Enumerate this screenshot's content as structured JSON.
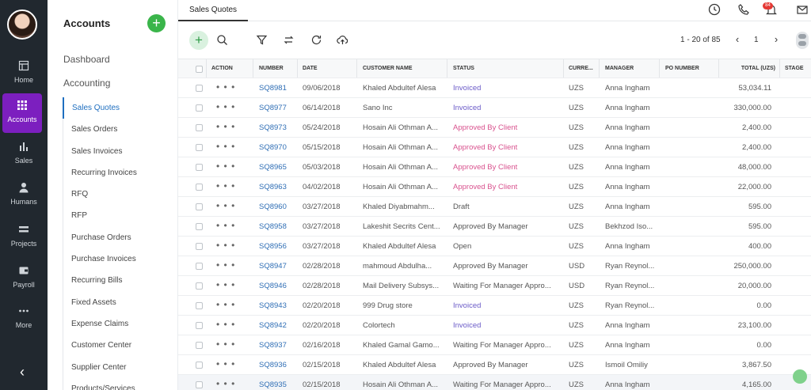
{
  "rail": {
    "items": [
      {
        "label": "Home",
        "icon": "home-icon"
      },
      {
        "label": "Accounts",
        "icon": "grid-icon"
      },
      {
        "label": "Sales",
        "icon": "bar-chart-icon"
      },
      {
        "label": "Humans",
        "icon": "person-icon"
      },
      {
        "label": "Projects",
        "icon": "projects-icon"
      },
      {
        "label": "Payroll",
        "icon": "wallet-icon"
      },
      {
        "label": "More",
        "icon": "more-icon"
      }
    ],
    "active_color": "#7c1fbf"
  },
  "subnav": {
    "title": "Accounts",
    "add_label": "+",
    "dashboard": "Dashboard",
    "accounting": "Accounting",
    "items": [
      "Sales Quotes",
      "Sales Orders",
      "Sales Invoices",
      "Recurring Invoices",
      "RFQ",
      "RFP",
      "Purchase Orders",
      "Purchase Invoices",
      "Recurring Bills",
      "Fixed Assets",
      "Expense Claims",
      "Customer Center",
      "Supplier Center",
      "Products/Services"
    ]
  },
  "topbar": {
    "tab": "Sales Quotes",
    "notification_count": "84"
  },
  "toolbar": {
    "add_label": "+",
    "pager_text": "1 - 20 of 85",
    "page": "1"
  },
  "table": {
    "columns": [
      "ACTION",
      "NUMBER",
      "DATE",
      "CUSTOMER NAME",
      "STATUS",
      "CURRE...",
      "MANAGER",
      "PO NUMBER",
      "TOTAL (UZS)",
      "STAGE"
    ],
    "rows": [
      {
        "number": "SQ8981",
        "date": "09/06/2018",
        "customer": "Khaled Abdultef Alesa",
        "status": "Invoiced",
        "currency": "UZS",
        "manager": "Anna Ingham",
        "total": "53,034.11"
      },
      {
        "number": "SQ8977",
        "date": "06/14/2018",
        "customer": "Sano Inc",
        "status": "Invoiced",
        "currency": "UZS",
        "manager": "Anna Ingham",
        "total": "330,000.00"
      },
      {
        "number": "SQ8973",
        "date": "05/24/2018",
        "customer": "Hosain Ali Othman A...",
        "status": "Approved By Client",
        "currency": "UZS",
        "manager": "Anna Ingham",
        "total": "2,400.00"
      },
      {
        "number": "SQ8970",
        "date": "05/15/2018",
        "customer": "Hosain Ali Othman A...",
        "status": "Approved By Client",
        "currency": "UZS",
        "manager": "Anna Ingham",
        "total": "2,400.00"
      },
      {
        "number": "SQ8965",
        "date": "05/03/2018",
        "customer": "Hosain Ali Othman A...",
        "status": "Approved By Client",
        "currency": "UZS",
        "manager": "Anna Ingham",
        "total": "48,000.00"
      },
      {
        "number": "SQ8963",
        "date": "04/02/2018",
        "customer": "Hosain Ali Othman A...",
        "status": "Approved By Client",
        "currency": "UZS",
        "manager": "Anna Ingham",
        "total": "22,000.00"
      },
      {
        "number": "SQ8960",
        "date": "03/27/2018",
        "customer": "Khaled Diyabmahm...",
        "status": "Draft",
        "currency": "UZS",
        "manager": "Anna Ingham",
        "total": "595.00"
      },
      {
        "number": "SQ8958",
        "date": "03/27/2018",
        "customer": "Lakeshit Secrits Cent...",
        "status": "Approved By Manager",
        "currency": "UZS",
        "manager": "Bekhzod Iso...",
        "total": "595.00"
      },
      {
        "number": "SQ8956",
        "date": "03/27/2018",
        "customer": "Khaled Abdultef Alesa",
        "status": "Open",
        "currency": "UZS",
        "manager": "Anna Ingham",
        "total": "400.00"
      },
      {
        "number": "SQ8947",
        "date": "02/28/2018",
        "customer": "mahmoud Abdulha...",
        "status": "Approved By Manager",
        "currency": "USD",
        "manager": "Ryan Reynol...",
        "total": "250,000.00"
      },
      {
        "number": "SQ8946",
        "date": "02/28/2018",
        "customer": "Mail Delivery Subsys...",
        "status": "Waiting For Manager Appro...",
        "currency": "USD",
        "manager": "Ryan Reynol...",
        "total": "20,000.00"
      },
      {
        "number": "SQ8943",
        "date": "02/20/2018",
        "customer": "999 Drug store",
        "status": "Invoiced",
        "currency": "UZS",
        "manager": "Ryan Reynol...",
        "total": "0.00"
      },
      {
        "number": "SQ8942",
        "date": "02/20/2018",
        "customer": "Colortech",
        "status": "Invoiced",
        "currency": "UZS",
        "manager": "Anna Ingham",
        "total": "23,100.00"
      },
      {
        "number": "SQ8937",
        "date": "02/16/2018",
        "customer": "Khaled Gamal Gamo...",
        "status": "Waiting For Manager Appro...",
        "currency": "UZS",
        "manager": "Anna Ingham",
        "total": "0.00"
      },
      {
        "number": "SQ8936",
        "date": "02/15/2018",
        "customer": "Khaled Abdultef Alesa",
        "status": "Approved By Manager",
        "currency": "UZS",
        "manager": "Ismoil Omiliy",
        "total": "3,867.50"
      },
      {
        "number": "SQ8935",
        "date": "02/15/2018",
        "customer": "Hosain Ali Othman A...",
        "status": "Waiting For Manager Appro...",
        "currency": "UZS",
        "manager": "Anna Ingham",
        "total": "4,165.00"
      }
    ],
    "action_glyph": "• • •"
  },
  "colors": {
    "link": "#2f6eb5",
    "invoiced": "#6b5bc8",
    "approved_by_client": "#d9528e",
    "add_green": "#3ab54a"
  }
}
